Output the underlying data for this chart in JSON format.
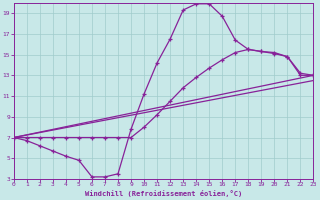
{
  "xlabel": "Windchill (Refroidissement éolien,°C)",
  "bg_color": "#c8e8e8",
  "line_color": "#882299",
  "grid_color": "#a0cccc",
  "xlim": [
    0,
    23
  ],
  "ylim": [
    3,
    20
  ],
  "xticks": [
    0,
    1,
    2,
    3,
    4,
    5,
    6,
    7,
    8,
    9,
    10,
    11,
    12,
    13,
    14,
    15,
    16,
    17,
    18,
    19,
    20,
    21,
    22,
    23
  ],
  "yticks": [
    3,
    5,
    7,
    9,
    11,
    13,
    15,
    17,
    19
  ],
  "curve1_x": [
    0,
    1,
    2,
    3,
    4,
    5,
    6,
    7,
    8,
    9,
    10,
    11,
    12,
    13,
    14,
    15,
    16,
    17,
    18,
    19,
    20,
    21,
    22,
    23
  ],
  "curve1_y": [
    7.0,
    6.7,
    6.2,
    5.7,
    5.2,
    4.8,
    3.2,
    3.2,
    3.5,
    7.8,
    11.2,
    14.2,
    16.5,
    19.3,
    19.9,
    19.9,
    18.7,
    16.4,
    15.5,
    15.3,
    15.1,
    14.8,
    13.0,
    13.0
  ],
  "curve2_x": [
    0,
    1,
    2,
    3,
    4,
    5,
    6,
    7,
    8,
    9,
    10,
    11,
    12,
    13,
    14,
    15,
    16,
    17,
    18,
    19,
    20,
    21,
    22,
    23
  ],
  "curve2_y": [
    7.0,
    7.0,
    7.0,
    7.0,
    7.0,
    7.0,
    7.0,
    7.0,
    7.0,
    7.0,
    8.0,
    9.2,
    10.5,
    11.8,
    12.8,
    13.7,
    14.5,
    15.2,
    15.5,
    15.3,
    15.2,
    14.8,
    13.2,
    13.0
  ],
  "line1_x": [
    0,
    23
  ],
  "line1_y": [
    7.0,
    13.0
  ],
  "line2_x": [
    0,
    23
  ],
  "line2_y": [
    7.0,
    12.5
  ]
}
